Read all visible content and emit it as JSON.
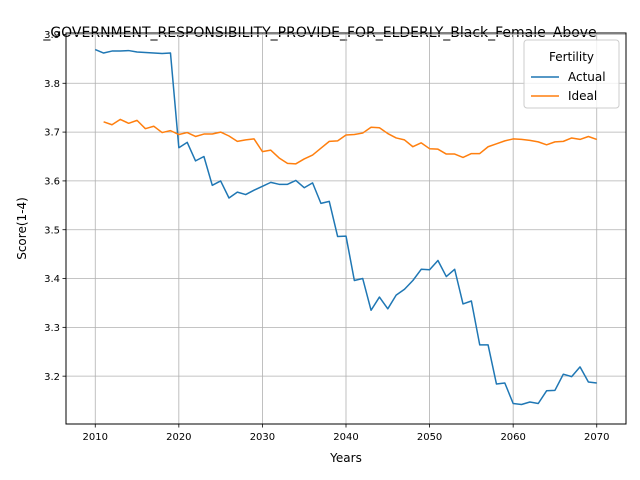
{
  "chart_data": {
    "type": "line",
    "title": "_GOVERNMENT_RESPONSIBILITY_PROVIDE_FOR_ELDERLY_Black_Female_Above",
    "xlabel": "Years",
    "ylabel": "Score(1-4)",
    "xlim": [
      2006.5,
      2073.5
    ],
    "ylim": [
      3.102,
      3.903
    ],
    "x_ticks": [
      2010,
      2020,
      2030,
      2040,
      2050,
      2060,
      2070
    ],
    "y_ticks": [
      3.2,
      3.3,
      3.4,
      3.5,
      3.6,
      3.7,
      3.8,
      3.9
    ],
    "grid": true,
    "legend": {
      "title": "Fertility",
      "placement": "top-right"
    },
    "series": [
      {
        "name": "Actual",
        "color": "#1f77b4",
        "x": [
          2010,
          2011,
          2012,
          2013,
          2014,
          2015,
          2016,
          2017,
          2018,
          2019,
          2020,
          2021,
          2022,
          2023,
          2024,
          2025,
          2026,
          2027,
          2028,
          2029,
          2030,
          2031,
          2032,
          2033,
          2034,
          2035,
          2036,
          2037,
          2038,
          2039,
          2040,
          2041,
          2042,
          2043,
          2044,
          2045,
          2046,
          2047,
          2048,
          2049,
          2050,
          2051,
          2052,
          2053,
          2054,
          2055,
          2056,
          2057,
          2058,
          2059,
          2060,
          2061,
          2062,
          2063,
          2064,
          2065,
          2066,
          2067,
          2068,
          2069,
          2070
        ],
        "values": [
          3.869,
          3.862,
          3.866,
          3.866,
          3.867,
          3.864,
          3.863,
          3.862,
          3.861,
          3.862,
          3.668,
          3.679,
          3.641,
          3.65,
          3.591,
          3.6,
          3.565,
          3.577,
          3.572,
          3.581,
          3.589,
          3.597,
          3.593,
          3.593,
          3.601,
          3.586,
          3.596,
          3.554,
          3.558,
          3.486,
          3.487,
          3.396,
          3.4,
          3.335,
          3.362,
          3.338,
          3.366,
          3.378,
          3.396,
          3.419,
          3.418,
          3.437,
          3.404,
          3.419,
          3.348,
          3.354,
          3.264,
          3.264,
          3.184,
          3.186,
          3.144,
          3.142,
          3.147,
          3.144,
          3.17,
          3.171,
          3.204,
          3.199,
          3.219,
          3.188,
          3.186
        ]
      },
      {
        "name": "Ideal",
        "color": "#ff7f0e",
        "x": [
          2011,
          2012,
          2013,
          2014,
          2015,
          2016,
          2017,
          2018,
          2019,
          2020,
          2021,
          2022,
          2023,
          2024,
          2025,
          2026,
          2027,
          2028,
          2029,
          2030,
          2031,
          2032,
          2033,
          2034,
          2035,
          2036,
          2037,
          2038,
          2039,
          2040,
          2041,
          2042,
          2043,
          2044,
          2045,
          2046,
          2047,
          2048,
          2049,
          2050,
          2051,
          2052,
          2053,
          2054,
          2055,
          2056,
          2057,
          2058,
          2059,
          2060,
          2061,
          2062,
          2063,
          2064,
          2065,
          2066,
          2067,
          2068,
          2069,
          2070
        ],
        "values": [
          3.721,
          3.715,
          3.726,
          3.718,
          3.724,
          3.707,
          3.712,
          3.699,
          3.703,
          3.695,
          3.699,
          3.691,
          3.696,
          3.696,
          3.7,
          3.692,
          3.681,
          3.684,
          3.686,
          3.66,
          3.663,
          3.647,
          3.636,
          3.635,
          3.645,
          3.653,
          3.667,
          3.681,
          3.682,
          3.694,
          3.695,
          3.698,
          3.71,
          3.709,
          3.697,
          3.688,
          3.684,
          3.67,
          3.678,
          3.666,
          3.665,
          3.655,
          3.655,
          3.648,
          3.656,
          3.656,
          3.67,
          3.676,
          3.682,
          3.686,
          3.685,
          3.683,
          3.68,
          3.674,
          3.68,
          3.681,
          3.688,
          3.685,
          3.691,
          3.685
        ]
      }
    ]
  }
}
